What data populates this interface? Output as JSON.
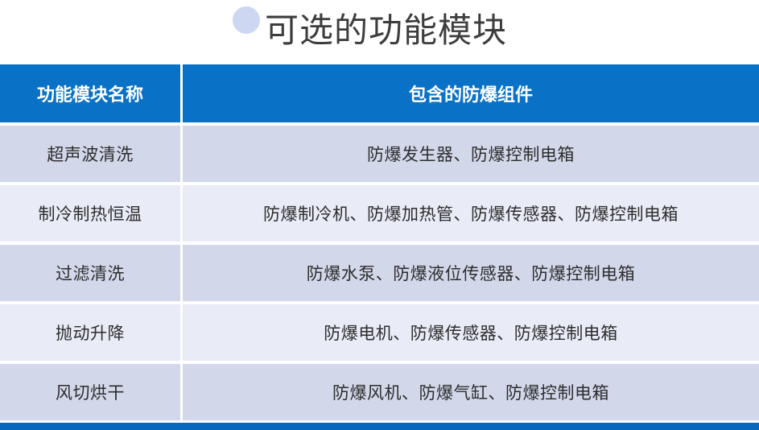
{
  "page": {
    "title": "可选的功能模块"
  },
  "table": {
    "columns": [
      {
        "label": "功能模块名称"
      },
      {
        "label": "包含的防爆组件"
      }
    ],
    "rows": [
      {
        "module": "超声波清洗",
        "components": "防爆发生器、防爆控制电箱"
      },
      {
        "module": "制冷制热恒温",
        "components": "防爆制冷机、防爆加热管、防爆传感器、防爆控制电箱"
      },
      {
        "module": "过滤清洗",
        "components": "防爆水泵、防爆液位传感器、防爆控制电箱"
      },
      {
        "module": "抛动升降",
        "components": "防爆电机、防爆传感器、防爆控制电箱"
      },
      {
        "module": "风切烘干",
        "components": "防爆风机、防爆气缸、防爆控制电箱"
      }
    ]
  },
  "colors": {
    "header_bg": "#0A72C6",
    "accent_bar": "#0768BD",
    "row_dark": "#D2D7EA",
    "row_light": "#E9EBF6",
    "title_ring": "#CDD7F2",
    "title_text": "#3D3D3D",
    "body_text": "#2D2D2D",
    "header_text": "#FFFFFF"
  }
}
